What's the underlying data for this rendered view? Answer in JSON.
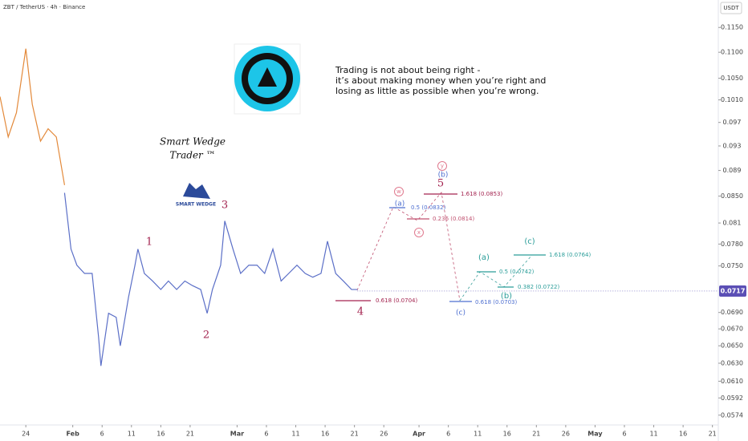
{
  "header": {
    "symbol": "ZBT / TetherUS · 4h · Binance",
    "currency": "USDT"
  },
  "quote": [
    "Trading is not about being right -",
    "it’s about making money when you’re right and",
    "losing as little as possible when you’re wrong."
  ],
  "brand": {
    "name": "Smart Wedge",
    "sub": "Trader ™",
    "logo": "SMART WEDGE"
  },
  "chart_data": {
    "type": "line",
    "log_scale": true,
    "xlim": [
      19.6,
      142.0
    ],
    "ylim": [
      0.0564,
      0.1208
    ],
    "yticks": [
      {
        "value": 0.115,
        "label": "0.1150"
      },
      {
        "value": 0.11,
        "label": "0.1100"
      },
      {
        "value": 0.105,
        "label": "0.1050"
      },
      {
        "value": 0.101,
        "label": "0.1010"
      },
      0.097,
      0.093,
      0.089,
      {
        "value": 0.085,
        "label": "0.0850"
      },
      0.081,
      {
        "value": 0.078,
        "label": "0.0780"
      },
      {
        "value": 0.075,
        "label": "0.0750"
      },
      {
        "value": 0.069,
        "label": "0.0690"
      },
      {
        "value": 0.067,
        "label": "0.0670"
      },
      {
        "value": 0.065,
        "label": "0.0650"
      },
      {
        "value": 0.063,
        "label": "0.0630"
      },
      {
        "value": 0.061,
        "label": "0.0610"
      },
      0.0592,
      0.0574
    ],
    "xticks": [
      {
        "value": 24,
        "label": "24"
      },
      {
        "value": 32,
        "label": "Feb"
      },
      {
        "value": 37,
        "label": "6"
      },
      {
        "value": 42,
        "label": "11"
      },
      {
        "value": 47,
        "label": "16"
      },
      {
        "value": 52,
        "label": "21"
      },
      {
        "value": 60,
        "label": "Mar"
      },
      {
        "value": 65,
        "label": "6"
      },
      {
        "value": 70,
        "label": "11"
      },
      {
        "value": 75,
        "label": "16"
      },
      {
        "value": 80,
        "label": "21"
      },
      {
        "value": 85,
        "label": "26"
      },
      {
        "value": 91,
        "label": "Apr"
      },
      {
        "value": 96,
        "label": "6"
      },
      {
        "value": 101,
        "label": "11"
      },
      {
        "value": 106,
        "label": "16"
      },
      {
        "value": 111,
        "label": "21"
      },
      {
        "value": 116,
        "label": "26"
      },
      {
        "value": 121,
        "label": "May"
      },
      {
        "value": 126,
        "label": "6"
      },
      {
        "value": 131,
        "label": "11"
      },
      {
        "value": 136,
        "label": "16"
      },
      {
        "value": 141,
        "label": "21"
      }
    ],
    "last_price": {
      "value": 0.0717,
      "label": "0.0717",
      "color": "#5b4fb5"
    },
    "series": [
      {
        "color": "#e3893a",
        "x": [
          19.6,
          21.0,
          22.4,
          24.0,
          25.1,
          26.5,
          27.8,
          29.2,
          30.6
        ],
        "values": [
          0.1016,
          0.0945,
          0.0987,
          0.1107,
          0.1002,
          0.0938,
          0.0959,
          0.0945,
          0.0867
        ]
      },
      {
        "color": "#5b6fc7",
        "x": [
          30.6,
          31.7,
          32.7,
          34.0,
          35.3,
          36.4,
          36.8,
          38.1,
          39.4,
          40.1,
          41.5,
          42.6,
          43.1,
          44.2,
          45.6,
          47.0,
          48.3,
          49.7,
          51.1,
          52.4,
          53.8,
          54.9,
          55.8,
          57.2,
          57.9,
          59.3,
          60.6,
          62.0,
          63.4,
          64.7,
          66.1,
          67.5,
          68.8,
          70.2,
          71.6,
          72.9,
          74.3,
          75.4,
          76.8,
          78.1,
          79.5,
          80.5
        ],
        "values": [
          0.0855,
          0.0773,
          0.0751,
          0.074,
          0.074,
          0.066,
          0.0627,
          0.0689,
          0.0684,
          0.065,
          0.0709,
          0.0751,
          0.0773,
          0.074,
          0.073,
          0.0719,
          0.073,
          0.0719,
          0.073,
          0.0724,
          0.0719,
          0.0689,
          0.0719,
          0.0751,
          0.0813,
          0.0773,
          0.074,
          0.0751,
          0.0751,
          0.074,
          0.0773,
          0.073,
          0.074,
          0.0751,
          0.074,
          0.0735,
          0.074,
          0.0784,
          0.074,
          0.073,
          0.0719,
          0.0719
        ]
      }
    ],
    "waves": [
      "1",
      "2",
      "3",
      "4",
      "5",
      "(a)",
      "(b)",
      "(c)",
      "w",
      "x",
      "y",
      "(a)",
      "(b)",
      "(c)"
    ],
    "fib_labels": [
      "0.5 (0.0832)",
      "0.236 (0.0814)",
      "1.618 (0.0853)",
      "0.618 (0.0704)",
      "0.618 (0.0703)",
      "0.5 (0.0742)",
      "0.382 (0.0722)",
      "1.618 (0.0764)"
    ]
  }
}
